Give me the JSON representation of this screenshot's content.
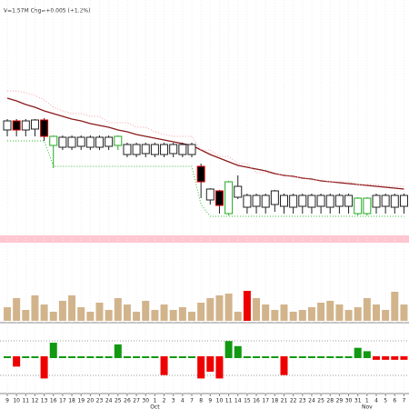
{
  "chart_data": {
    "type": "candlestick",
    "header_text": "V=1.57M  Chg=+0.005 (+1.2%)",
    "categories": [
      "9",
      "10",
      "11",
      "12",
      "13",
      "16",
      "17",
      "18",
      "19",
      "20",
      "23",
      "24",
      "25",
      "26",
      "27",
      "30",
      "1",
      "2",
      "3",
      "4",
      "7",
      "8",
      "9",
      "10",
      "11",
      "14",
      "15",
      "16",
      "17",
      "18",
      "21",
      "22",
      "23",
      "24",
      "25",
      "28",
      "29",
      "30",
      "31",
      "1",
      "4",
      "5",
      "6",
      "7"
    ],
    "months": [
      null,
      null,
      null,
      null,
      null,
      null,
      null,
      null,
      null,
      null,
      null,
      null,
      null,
      null,
      null,
      null,
      "Oct",
      null,
      null,
      null,
      null,
      null,
      null,
      null,
      null,
      null,
      null,
      null,
      null,
      null,
      null,
      null,
      null,
      null,
      null,
      null,
      null,
      null,
      null,
      "Nov",
      null,
      null,
      null,
      null
    ],
    "ylim": [
      0,
      255
    ],
    "open": [
      112,
      122,
      112,
      113,
      123,
      95,
      93,
      93,
      94,
      93,
      93,
      94,
      95,
      85,
      85,
      86,
      85,
      85,
      86,
      85,
      85,
      72,
      35,
      45,
      20,
      38,
      27,
      28,
      27,
      30,
      28,
      27,
      28,
      27,
      28,
      27,
      28,
      28,
      20,
      20,
      27,
      28,
      27,
      28
    ],
    "high": [
      124,
      124,
      124,
      124,
      125,
      106,
      106,
      106,
      106,
      106,
      106,
      106,
      106,
      98,
      98,
      98,
      98,
      98,
      98,
      98,
      98,
      75,
      48,
      46,
      56,
      62,
      42,
      42,
      42,
      46,
      42,
      42,
      42,
      42,
      42,
      42,
      42,
      42,
      38,
      38,
      42,
      42,
      42,
      42
    ],
    "low": [
      105,
      105,
      105,
      105,
      100,
      70,
      90,
      90,
      90,
      90,
      90,
      90,
      90,
      82,
      82,
      82,
      82,
      82,
      82,
      82,
      82,
      37,
      30,
      20,
      18,
      36,
      20,
      20,
      20,
      22,
      20,
      20,
      20,
      20,
      20,
      20,
      20,
      20,
      18,
      18,
      20,
      20,
      20,
      20
    ],
    "close": [
      122,
      112,
      122,
      123,
      105,
      105,
      104,
      104,
      104,
      104,
      104,
      104,
      105,
      96,
      96,
      96,
      96,
      96,
      96,
      96,
      96,
      55,
      47,
      29,
      55,
      50,
      40,
      40,
      40,
      45,
      40,
      40,
      40,
      40,
      40,
      40,
      40,
      40,
      37,
      37,
      40,
      40,
      40,
      40
    ],
    "candle_colors": {
      "up": "#222222",
      "down": "#000000",
      "down_edge": "#dd0000",
      "special": "#22aa22"
    },
    "special": [
      5,
      12,
      24,
      38,
      39
    ],
    "lines": [
      {
        "name": "ma",
        "color": "#8b1a1a",
        "style": "solid",
        "values": [
          147,
          144,
          140,
          137,
          133,
          130,
          127,
          124,
          122,
          119,
          117,
          115,
          112,
          110,
          107,
          105,
          103,
          101,
          99,
          97,
          95,
          90,
          85,
          81,
          77,
          73,
          71,
          69,
          67,
          64,
          62,
          61,
          59,
          58,
          56,
          55,
          54,
          53,
          52,
          51,
          50,
          49,
          48,
          47
        ]
      },
      {
        "name": "upper",
        "color": "#f4a0a8",
        "style": "dotted",
        "values": [
          155,
          155,
          153,
          150,
          145,
          137,
          133,
          130,
          130,
          127,
          127,
          120,
          120,
          120,
          115,
          115,
          110,
          107,
          105,
          105,
          105,
          90,
          90,
          83,
          83,
          75,
          75,
          65,
          65,
          63,
          63,
          60,
          60,
          57,
          57,
          55,
          55,
          55,
          52,
          52,
          52,
          50,
          50,
          50
        ]
      },
      {
        "name": "lower",
        "color": "#33bb33",
        "style": "dotted",
        "values": [
          100,
          100,
          100,
          100,
          100,
          72,
          72,
          72,
          72,
          72,
          72,
          72,
          72,
          72,
          72,
          72,
          72,
          72,
          72,
          72,
          72,
          30,
          17,
          17,
          17,
          17,
          17,
          17,
          17,
          17,
          17,
          17,
          17,
          17,
          17,
          17,
          17,
          17,
          17,
          17,
          17,
          17,
          17,
          17
        ]
      }
    ],
    "volume": {
      "ylim": [
        0,
        85
      ],
      "color": "#d2b48c",
      "highlight_color": "#ee0000",
      "highlight": [
        26
      ],
      "values": [
        15,
        25,
        12,
        28,
        18,
        10,
        22,
        28,
        15,
        10,
        20,
        12,
        25,
        18,
        10,
        22,
        12,
        18,
        12,
        15,
        10,
        20,
        25,
        28,
        30,
        10,
        33,
        25,
        18,
        12,
        18,
        10,
        12,
        15,
        20,
        22,
        18,
        12,
        15,
        25,
        18,
        12,
        32,
        18
      ]
    },
    "indicator": {
      "ylim": [
        -15,
        15
      ],
      "up_color": "#119911",
      "down_color": "#ee0000",
      "values": [
        0,
        -5,
        0,
        0,
        -12,
        8,
        0,
        0,
        0,
        0,
        0,
        0,
        7,
        0,
        0,
        0,
        0,
        -10,
        0,
        0,
        0,
        -12,
        -8,
        -12,
        9,
        6,
        0,
        0,
        0,
        0,
        -10,
        0,
        0,
        0,
        0,
        0,
        0,
        0,
        5,
        3,
        -1,
        -1,
        -1,
        -1
      ]
    }
  }
}
